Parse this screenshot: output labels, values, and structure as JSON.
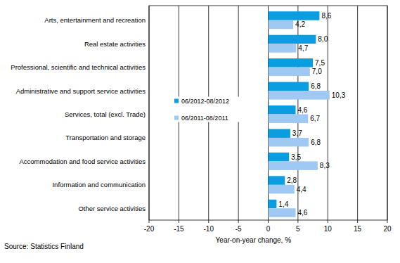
{
  "chart_data": {
    "type": "bar",
    "orientation": "horizontal",
    "categories": [
      "Arts, entertainment and recreation",
      "Real estate activities",
      "Professional, scientific and technical activities",
      "Administrative and support service activities",
      "Services, total (excl. Trade)",
      "Transportation and storage",
      "Accommodation and food service activities",
      "Information and communication",
      "Other service activities"
    ],
    "series": [
      {
        "name": "06/2012-08/2012",
        "color": "#0a9ee0",
        "values": [
          8.6,
          8.0,
          7.5,
          6.8,
          4.6,
          3.7,
          3.5,
          2.8,
          1.4
        ],
        "value_labels": [
          "8,6",
          "8,0",
          "7,5",
          "6,8",
          "4,6",
          "3,7",
          "3,5",
          "2,8",
          "1,4"
        ]
      },
      {
        "name": "06/2011-08/2011",
        "color": "#9fc8f2",
        "values": [
          4.2,
          4.7,
          7.0,
          10.3,
          6.7,
          6.8,
          8.3,
          4.4,
          4.6
        ],
        "value_labels": [
          "4,2",
          "4,7",
          "7,0",
          "10,3",
          "6,7",
          "6,8",
          "8,3",
          "4,4",
          "4,6"
        ]
      }
    ],
    "xlim": [
      -20,
      20
    ],
    "xticks": [
      -20,
      -15,
      -10,
      -5,
      0,
      5,
      10,
      15,
      20
    ],
    "xlabel": "Year-on-year change, %",
    "source": "Source: Statistics Finland",
    "grid": true,
    "legend": "left",
    "data_labels": true
  }
}
